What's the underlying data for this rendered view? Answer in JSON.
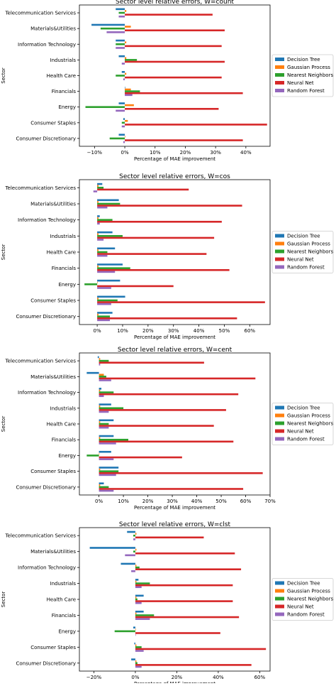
{
  "colors": {
    "Decision Tree": "#1f77b4",
    "Gaussian Process": "#ff7f0e",
    "Nearest Neighbors": "#2ca02c",
    "Neural Net": "#d62728",
    "Random Forest": "#9467bd"
  },
  "chart_data": [
    {
      "type": "bar",
      "orientation": "horizontal",
      "title": "Sector level relative errors, W=count",
      "xlabel": "Percentage of MAE improvement",
      "ylabel": "Sector",
      "xlim": [
        -0.15,
        0.48
      ],
      "xticks": [
        -0.1,
        0,
        0.1,
        0.2,
        0.3,
        0.4
      ],
      "xtick_labels": [
        "−10%",
        "0%",
        "10%",
        "20%",
        "30%",
        "40%"
      ],
      "legend": "right",
      "grid": false,
      "categories": [
        "Consumer Discretionary",
        "Consumer Staples",
        "Energy",
        "Financials",
        "Health Care",
        "Industrials",
        "Information Technology",
        "Materials&Utilities",
        "Telecommunication Services"
      ],
      "series": [
        {
          "name": "Decision Tree",
          "values": [
            -0.02,
            -0.005,
            -0.02,
            0.0,
            -0.01,
            -0.02,
            -0.03,
            -0.11,
            -0.03
          ]
        },
        {
          "name": "Gaussian Process",
          "values": [
            0.0,
            0.01,
            0.03,
            0.02,
            0.005,
            0.005,
            0.005,
            0.02,
            0.005
          ]
        },
        {
          "name": "Nearest Neighbors",
          "values": [
            -0.05,
            -0.01,
            -0.13,
            0.05,
            -0.03,
            0.04,
            -0.03,
            -0.08,
            -0.02
          ]
        },
        {
          "name": "Neural Net",
          "values": [
            0.39,
            0.47,
            0.31,
            0.39,
            0.32,
            0.33,
            0.32,
            0.33,
            0.29
          ]
        },
        {
          "name": "Random Forest",
          "values": [
            -0.005,
            -0.01,
            -0.03,
            0.025,
            -0.005,
            -0.01,
            -0.03,
            -0.06,
            -0.02
          ]
        }
      ]
    },
    {
      "type": "bar",
      "orientation": "horizontal",
      "title": "Sector level relative errors, W=cos",
      "xlabel": "Percentage of MAE improvement",
      "ylabel": "Sector",
      "xlim": [
        -0.07,
        0.68
      ],
      "xticks": [
        0,
        0.1,
        0.2,
        0.3,
        0.4,
        0.5,
        0.6
      ],
      "xtick_labels": [
        "0%",
        "10%",
        "20%",
        "30%",
        "40%",
        "50%",
        "60%"
      ],
      "legend": "right",
      "grid": false,
      "categories": [
        "Consumer Discretionary",
        "Consumer Staples",
        "Energy",
        "Financials",
        "Health Care",
        "Industrials",
        "Information Technology",
        "Materials&Utilities",
        "Telecommunication Services"
      ],
      "series": [
        {
          "name": "Decision Tree",
          "values": [
            0.06,
            0.11,
            0.09,
            0.1,
            0.07,
            0.06,
            0.01,
            0.085,
            0.02
          ]
        },
        {
          "name": "Gaussian Process",
          "values": [
            0.005,
            0.005,
            0.0,
            0.005,
            0.005,
            0.005,
            0.005,
            0.005,
            0.005
          ]
        },
        {
          "name": "Nearest Neighbors",
          "values": [
            0.05,
            0.08,
            -0.05,
            0.13,
            0.04,
            0.1,
            0.06,
            0.09,
            0.025
          ]
        },
        {
          "name": "Neural Net",
          "values": [
            0.55,
            0.66,
            0.3,
            0.52,
            0.43,
            0.46,
            0.49,
            0.57,
            0.36
          ]
        },
        {
          "name": "Random Forest",
          "values": [
            0.05,
            0.055,
            0.055,
            0.07,
            0.04,
            0.025,
            0.01,
            0.04,
            -0.015
          ]
        }
      ]
    },
    {
      "type": "bar",
      "orientation": "horizontal",
      "title": "Sector level relative errors, W=cent",
      "xlabel": "Percentage of MAE improvement",
      "ylabel": "Sector",
      "xlim": [
        -0.08,
        0.7
      ],
      "xticks": [
        0,
        0.1,
        0.2,
        0.3,
        0.4,
        0.5,
        0.6,
        0.7
      ],
      "xtick_labels": [
        "0%",
        "10%",
        "20%",
        "30%",
        "40%",
        "50%",
        "60%",
        "70%"
      ],
      "legend": "right",
      "grid": false,
      "categories": [
        "Consumer Discretionary",
        "Consumer Staples",
        "Energy",
        "Financials",
        "Health Care",
        "Industrials",
        "Information Technology",
        "Materials&Utilities",
        "Telecommunication Services"
      ],
      "series": [
        {
          "name": "Decision Tree",
          "values": [
            0.02,
            0.08,
            0.05,
            0.06,
            0.06,
            0.05,
            0.01,
            -0.05,
            -0.005
          ]
        },
        {
          "name": "Gaussian Process",
          "values": [
            0.005,
            0.005,
            0.0,
            0.005,
            0.005,
            0.005,
            0.005,
            0.02,
            0.005
          ]
        },
        {
          "name": "Nearest Neighbors",
          "values": [
            0.04,
            0.08,
            -0.05,
            0.12,
            0.04,
            0.1,
            0.06,
            0.03,
            0.04
          ]
        },
        {
          "name": "Neural Net",
          "values": [
            0.59,
            0.67,
            0.34,
            0.55,
            0.47,
            0.52,
            0.57,
            0.64,
            0.43
          ]
        },
        {
          "name": "Random Forest",
          "values": [
            0.06,
            0.07,
            0.06,
            0.07,
            0.04,
            0.04,
            0.02,
            0.05,
            0.005
          ]
        }
      ]
    },
    {
      "type": "bar",
      "orientation": "horizontal",
      "title": "Sector level relative errors, W=clst",
      "xlabel": "Percentage of MAE improvement",
      "ylabel": "Sector",
      "xlim": [
        -0.27,
        0.65
      ],
      "xticks": [
        -0.2,
        0,
        0.2,
        0.4,
        0.6
      ],
      "xtick_labels": [
        "−20%",
        "0%",
        "20%",
        "40%",
        "60%"
      ],
      "legend": "right",
      "grid": false,
      "categories": [
        "Consumer Discretionary",
        "Consumer Staples",
        "Energy",
        "Financials",
        "Health Care",
        "Industrials",
        "Information Technology",
        "Materials&Utilities",
        "Telecommunication Services"
      ],
      "series": [
        {
          "name": "Decision Tree",
          "values": [
            -0.02,
            -0.005,
            -0.01,
            0.04,
            0.04,
            0.015,
            -0.07,
            -0.22,
            -0.04
          ]
        },
        {
          "name": "Gaussian Process",
          "values": [
            0.005,
            0.005,
            0.0,
            0.005,
            0.005,
            0.005,
            0.005,
            0.005,
            0.005
          ]
        },
        {
          "name": "Nearest Neighbors",
          "values": [
            0.01,
            0.03,
            -0.1,
            0.09,
            0.01,
            0.07,
            0.02,
            -0.01,
            -0.01
          ]
        },
        {
          "name": "Neural Net",
          "values": [
            0.56,
            0.63,
            0.41,
            0.5,
            0.47,
            0.47,
            0.51,
            0.48,
            0.33
          ]
        },
        {
          "name": "Random Forest",
          "values": [
            0.03,
            0.04,
            0.0,
            0.07,
            0.03,
            0.03,
            -0.02,
            -0.05,
            -0.01
          ]
        }
      ]
    }
  ]
}
